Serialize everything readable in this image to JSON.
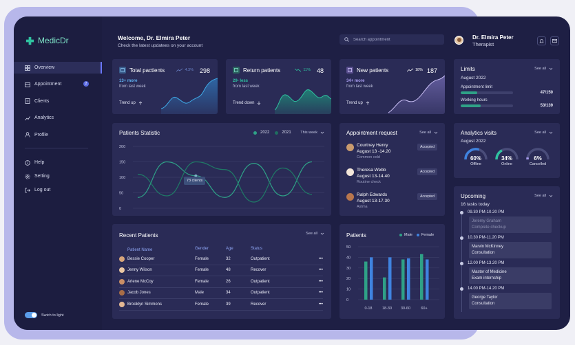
{
  "app": {
    "name": "MedicDr"
  },
  "sidebar": {
    "items": [
      {
        "label": "Overview",
        "active": true
      },
      {
        "label": "Appointment",
        "badge": "2"
      },
      {
        "label": "Clients"
      },
      {
        "label": "Analytics"
      },
      {
        "label": "Profile"
      }
    ],
    "secondary": [
      {
        "label": "Help"
      },
      {
        "label": "Setting"
      },
      {
        "label": "Log out"
      }
    ],
    "toggle_label": "Swich to light"
  },
  "header": {
    "welcome": "Welcome, Dr. Elmira Peter",
    "subtitle": "Check the latest updatees on your account",
    "search_placeholder": "Search appointment",
    "user_name": "Dr. Elmira Peter",
    "user_role": "Therapist"
  },
  "stats": [
    {
      "title": "Total pactients",
      "pct": "4.3%",
      "value": "298",
      "sub1": "13+ more",
      "sub2": "from last week",
      "trend": "Trend up",
      "color": "#3fa9e6"
    },
    {
      "title": "Return patients",
      "pct": "11%",
      "value": "48",
      "sub1": "29- less",
      "sub2": "from last week",
      "trend": "Trend down",
      "color": "#2fc2a0"
    },
    {
      "title": "New patients",
      "pct": "18%",
      "value": "187",
      "sub1": "34+ more",
      "sub2": "from last week",
      "trend": "Trend up",
      "color": "#a99df0"
    }
  ],
  "patients_statistic": {
    "title": "Patients Statistic",
    "legend": [
      "2022",
      "2021"
    ],
    "filter": "This week",
    "tooltip": "73 clients"
  },
  "chart_data": [
    {
      "type": "line",
      "title": "Patients Statistic",
      "x": [
        "Mo",
        "Tu",
        "We",
        "Th",
        "Fr",
        "Sa",
        "Su"
      ],
      "ylim": [
        0,
        200
      ],
      "yticks": [
        0,
        50,
        100,
        150,
        200
      ],
      "series": [
        {
          "name": "2022",
          "values": [
            35,
            150,
            105,
            35,
            145,
            40,
            150
          ]
        },
        {
          "name": "2021",
          "values": [
            110,
            40,
            150,
            125,
            20,
            130,
            45
          ]
        }
      ],
      "grid": true
    },
    {
      "type": "bar",
      "title": "Patients",
      "categories": [
        "0-18",
        "18-30",
        "30-60",
        "60+"
      ],
      "series": [
        {
          "name": "Male",
          "values": [
            36,
            21,
            38,
            43
          ]
        },
        {
          "name": "Female",
          "values": [
            40,
            40,
            39,
            38
          ]
        }
      ],
      "ylim": [
        0,
        50
      ],
      "yticks": [
        0,
        10,
        20,
        30,
        40,
        50
      ],
      "legend": "top-right"
    }
  ],
  "appointments": {
    "title": "Appointment request",
    "see_all": "See all",
    "items": [
      {
        "name": "Courtney Henry",
        "time": "August 13 -14.20",
        "note": "Common cold",
        "status": "Accepted"
      },
      {
        "name": "Theresa Webb",
        "time": "August 13-14.40",
        "note": "Routine check",
        "status": "Accepted"
      },
      {
        "name": "Ralph Edwards",
        "time": "August 13-17.30",
        "note": "Astma",
        "status": "Accepted"
      }
    ]
  },
  "recent_patients": {
    "title": "Recent Patients",
    "see_all": "See all",
    "columns": [
      "Patient Name",
      "Gender",
      "Age",
      "Status"
    ],
    "rows": [
      {
        "name": "Bessie Cooper",
        "gender": "Female",
        "age": "32",
        "status": "Outpatient"
      },
      {
        "name": "Jenny Wilson",
        "gender": "Female",
        "age": "48",
        "status": "Recover"
      },
      {
        "name": "Arlene McCoy",
        "gender": "Female",
        "age": "26",
        "status": "Outpatient"
      },
      {
        "name": "Jacob Jones",
        "gender": "Male",
        "age": "34",
        "status": "Outpatient"
      },
      {
        "name": "Brooklyn Simmons",
        "gender": "Female",
        "age": "39",
        "status": "Recover"
      }
    ]
  },
  "patients_chart": {
    "title": "Patients",
    "legend": [
      "Male",
      "Female"
    ]
  },
  "limits": {
    "title": "Limits",
    "see_all": "See all",
    "date": "August 2022",
    "items": [
      {
        "label": "Appointment limit",
        "value": "47/150",
        "fraction": 0.313
      },
      {
        "label": "Working hours",
        "value": "53/139",
        "fraction": 0.381
      }
    ]
  },
  "analytics_visits": {
    "title": "Analytics visits",
    "see_all": "See all",
    "date": "August 2022",
    "gauges": [
      {
        "value": "60%",
        "label": "Offline",
        "fraction": 0.6,
        "color": "#3f83e0"
      },
      {
        "value": "34%",
        "label": "Online",
        "fraction": 0.34,
        "color": "#2fc2a0"
      },
      {
        "value": "6%",
        "label": "Cancelled",
        "fraction": 0.06,
        "color": "#a99df0"
      }
    ]
  },
  "upcoming": {
    "title": "Upcoming",
    "see_all": "See all",
    "subtitle": "16 tasks today",
    "items": [
      {
        "time": "09.30 PM-10.20 PM",
        "lines": [
          "Jeremy Graham",
          "Complete checkup"
        ],
        "dim": true
      },
      {
        "time": "10.30 PM-11.20 PM",
        "lines": [
          "Marvin McKinney",
          "Consultation"
        ]
      },
      {
        "time": "12.00 PM-13.20 PM",
        "lines": [
          "Master of Medicine",
          "Exam internship"
        ]
      },
      {
        "time": "14.00 PM-14.20 PM",
        "lines": [
          "George Taylor",
          "Consultation"
        ]
      }
    ]
  }
}
